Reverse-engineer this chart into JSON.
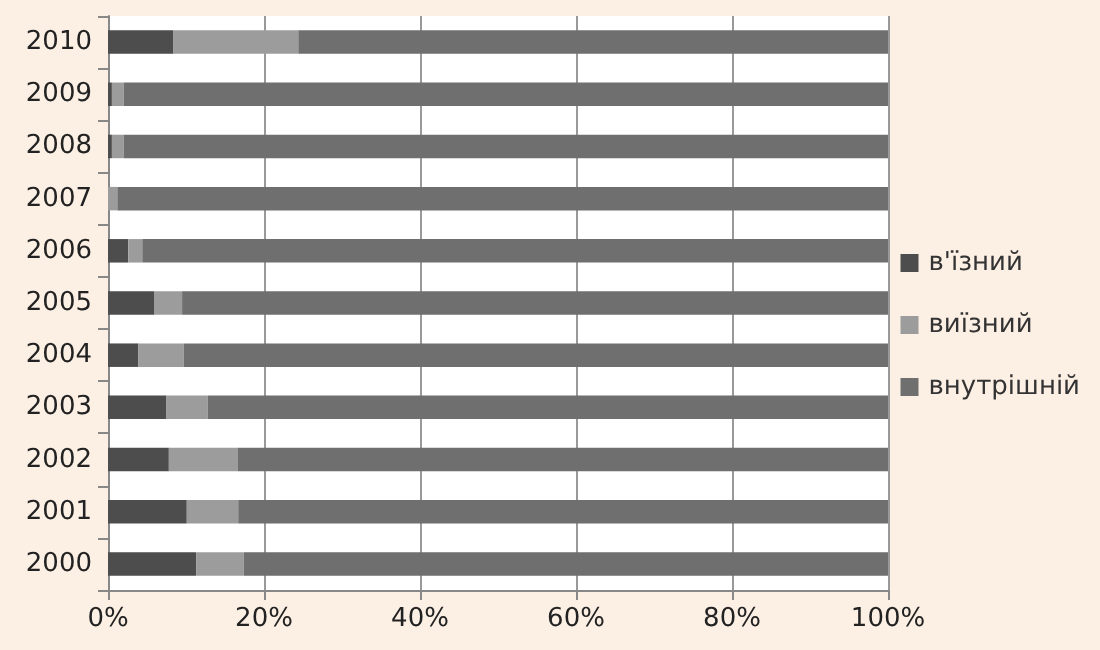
{
  "chart_data": {
    "type": "bar",
    "orientation": "horizontal",
    "stacked": true,
    "categories": [
      "2010",
      "2009",
      "2008",
      "2007",
      "2006",
      "2005",
      "2004",
      "2003",
      "2002",
      "2001",
      "2000"
    ],
    "series": [
      {
        "name": "в'їзний",
        "color": "#4d4d4d",
        "values": [
          8.4,
          0.5,
          0.5,
          null,
          2.6,
          5.9,
          3.9,
          7.5,
          7.8,
          10.1,
          11.3
        ]
      },
      {
        "name": "виїзний",
        "color": "#9c9c9c",
        "values": [
          16,
          1.5,
          1.5,
          1.2,
          1.8,
          3.6,
          5.8,
          5.3,
          8.8,
          6.6,
          6.1
        ]
      },
      {
        "name": "внутрішній",
        "color": "#6f6f6f",
        "values": [
          75.6,
          98,
          98,
          98.8,
          95.6,
          90.5,
          90.3,
          87.2,
          83.4,
          83.3,
          82.6
        ]
      }
    ],
    "xlim": [
      0,
      100
    ],
    "xticks": [
      {
        "value": 0,
        "label": "0%"
      },
      {
        "value": 20,
        "label": "20%"
      },
      {
        "value": 40,
        "label": "40%"
      },
      {
        "value": 60,
        "label": "60%"
      },
      {
        "value": 80,
        "label": "80%"
      },
      {
        "value": 100,
        "label": "100%"
      }
    ],
    "grid": "x",
    "legend": "right"
  }
}
